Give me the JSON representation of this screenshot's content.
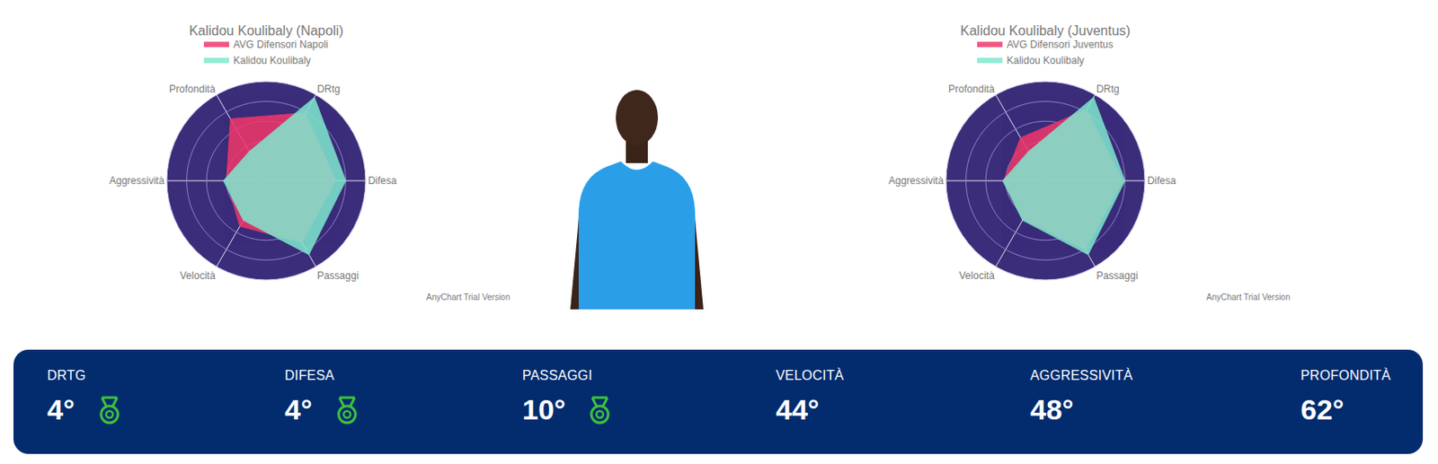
{
  "chart_data": [
    {
      "type": "radar",
      "title": "Kalidou Koulibaly (Napoli)",
      "categories": [
        "DRtg",
        "Difesa",
        "Passaggi",
        "Velocità",
        "Aggressività",
        "Profondità"
      ],
      "series": [
        {
          "name": "AVG Difensori Napoli",
          "color": "#f2386c",
          "values": [
            79,
            70,
            72,
            53,
            40,
            72
          ]
        },
        {
          "name": "Kalidou Koulibaly",
          "color": "#7fe9cf",
          "values": [
            97,
            80,
            86,
            46,
            43,
            34
          ]
        }
      ],
      "ylim": [
        0,
        100
      ],
      "yticks": [
        20,
        40,
        60,
        80,
        100
      ],
      "grid": true,
      "legend": "top",
      "tick_labels": "x"
    },
    {
      "type": "radar",
      "title": "Kalidou Koulibaly (Juventus)",
      "categories": [
        "DRtg",
        "Difesa",
        "Passaggi",
        "Velocità",
        "Aggressività",
        "Profondità"
      ],
      "series": [
        {
          "name": "AVG Difensori Juventus",
          "color": "#f2386c",
          "values": [
            83,
            78,
            80,
            45,
            42,
            50
          ]
        },
        {
          "name": "Kalidou Koulibaly",
          "color": "#7fe9cf",
          "values": [
            97,
            80,
            86,
            46,
            43,
            34
          ]
        }
      ],
      "ylim": [
        0,
        100
      ],
      "yticks": [
        20,
        40,
        60,
        80,
        100
      ],
      "grid": true,
      "legend": "top",
      "tick_labels": "x"
    }
  ],
  "watermark": "AnyChart Trial Version",
  "stats": [
    {
      "label": "DRTG",
      "value": "4°",
      "medal": true
    },
    {
      "label": "DIFESA",
      "value": "4°",
      "medal": true
    },
    {
      "label": "PASSAGGI",
      "value": "10°",
      "medal": true
    },
    {
      "label": "VELOCITÀ",
      "value": "44°",
      "medal": false
    },
    {
      "label": "AGGRESSIVITÀ",
      "value": "48°",
      "medal": false
    },
    {
      "label": "PROFONDITÀ",
      "value": "62°",
      "medal": false
    }
  ]
}
